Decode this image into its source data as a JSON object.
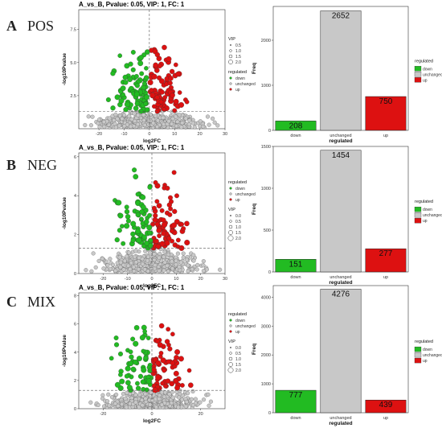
{
  "panels": [
    {
      "letter": "A",
      "name": "POS"
    },
    {
      "letter": "B",
      "name": "NEG"
    },
    {
      "letter": "C",
      "name": "MIX"
    }
  ],
  "colors": {
    "down": "#22bb22",
    "unchanged": "#c8c8c8",
    "up": "#dd1111"
  },
  "chart_data": [
    {
      "type": "scatter",
      "panel": "A",
      "title": "A_vs_B, Pvalue: 0.05, VIP: 1, FC: 1",
      "xlabel": "log2FC",
      "ylabel": "-log10Pvalue",
      "xlim": [
        -28,
        30
      ],
      "ylim": [
        0,
        9
      ],
      "xticks": [
        -20,
        -10,
        0,
        10,
        20,
        30
      ],
      "yticks": [
        2.5,
        5.0,
        7.5
      ],
      "threshold_y": 1.3,
      "threshold_x": 0,
      "legend": {
        "vip_title": "VIP",
        "vip_values": [
          "0.5",
          "1.0",
          "1.5",
          "2.0"
        ],
        "reg_title": "regulated",
        "reg_values": [
          "down",
          "unchanged",
          "up"
        ]
      }
    },
    {
      "type": "bar",
      "panel": "A",
      "categories": [
        "down",
        "unchanged",
        "up"
      ],
      "values": [
        208,
        2652,
        750
      ],
      "xlabel": "regulated",
      "ylabel": "Freq",
      "ylim": [
        0,
        2750
      ],
      "yticks": [
        0,
        1000,
        2000
      ],
      "legend_title": "regulated",
      "legend": [
        "down",
        "unchanged",
        "up"
      ]
    },
    {
      "type": "scatter",
      "panel": "B",
      "title": "A_vs_B, Pvalue: 0.05, VIP: 1, FC: 1",
      "xlabel": "log2FC",
      "ylabel": "-log10Pvalue",
      "xlim": [
        -30,
        30
      ],
      "ylim": [
        0,
        6.2
      ],
      "xticks": [
        -20,
        -10,
        0,
        10,
        20,
        30
      ],
      "yticks": [
        0,
        2,
        4,
        6
      ],
      "threshold_y": 1.3,
      "threshold_x": 0,
      "legend": {
        "vip_title": "VIP",
        "vip_values": [
          "0.0",
          "0.5",
          "1.0",
          "1.5",
          "2.0"
        ],
        "reg_title": "regulated",
        "reg_values": [
          "down",
          "unchanged",
          "up"
        ]
      }
    },
    {
      "type": "bar",
      "panel": "B",
      "categories": [
        "down",
        "unchanged",
        "up"
      ],
      "values": [
        151,
        1454,
        277
      ],
      "xlabel": "regulated",
      "ylabel": "Freq",
      "ylim": [
        0,
        1500
      ],
      "yticks": [
        0,
        500,
        1000,
        1500
      ],
      "legend_title": "regulated",
      "legend": [
        "down",
        "unchanged",
        "up"
      ]
    },
    {
      "type": "scatter",
      "panel": "C",
      "title": "A_vs_B, Pvalue: 0.05, VIP: 1, FC: 1",
      "xlabel": "log2FC",
      "ylabel": "-log10Pvalue",
      "xlim": [
        -30,
        30
      ],
      "ylim": [
        0,
        8.2
      ],
      "xticks": [
        -20,
        0,
        20
      ],
      "yticks": [
        0,
        2,
        4,
        6,
        8
      ],
      "threshold_y": 1.3,
      "threshold_x": 0,
      "legend": {
        "reg_title": "regulated",
        "reg_values": [
          "down",
          "unchanged",
          "up"
        ],
        "vip_title": "VIP",
        "vip_values": [
          "0.0",
          "0.5",
          "1.0",
          "1.5",
          "2.0"
        ]
      }
    },
    {
      "type": "bar",
      "panel": "C",
      "categories": [
        "down",
        "unchanged",
        "up"
      ],
      "values": [
        777,
        4276,
        439
      ],
      "xlabel": "regulated",
      "ylabel": "Freq",
      "ylim": [
        0,
        4400
      ],
      "yticks": [
        0,
        1000,
        2000,
        3000,
        4000
      ],
      "legend_title": "regulated",
      "legend": [
        "down",
        "unchanged",
        "up"
      ]
    }
  ]
}
